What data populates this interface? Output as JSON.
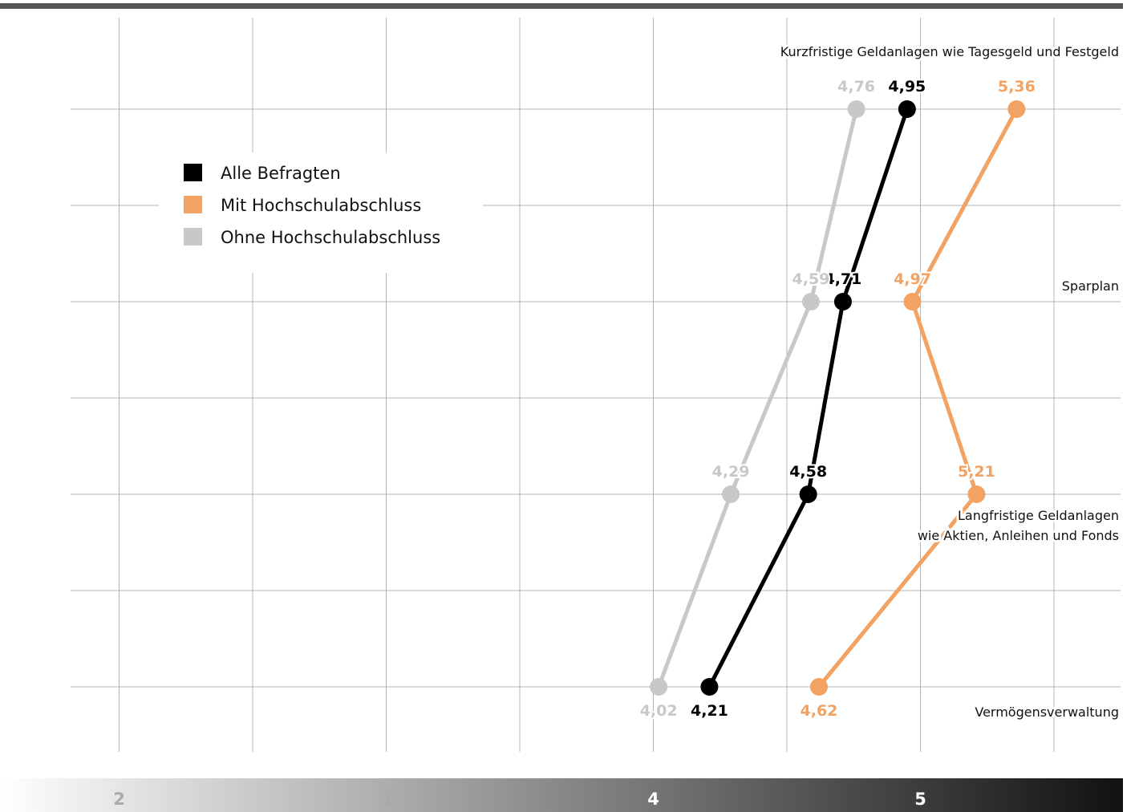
{
  "chart_data": {
    "type": "line",
    "orientation": "horizontal",
    "categories": [
      [
        "Kurzfristige Geldanlagen wie Tagesgeld und Festgeld"
      ],
      [
        "Sparplan"
      ],
      [
        "Langfristige Geldanlagen",
        "wie Aktien, Anleihen und Fonds"
      ],
      [
        "Vermögensverwaltung"
      ]
    ],
    "series": [
      {
        "name": "Alle Befragten",
        "color": "#000000",
        "values": [
          4.95,
          4.71,
          4.58,
          4.21
        ],
        "labels": [
          "4,95",
          "4,71",
          "4,58",
          "4,21"
        ]
      },
      {
        "name": "Mit Hochschulabschluss",
        "color": "#f2a262",
        "values": [
          5.36,
          4.97,
          5.21,
          4.62
        ],
        "labels": [
          "5,36",
          "4,97",
          "5,21",
          "4,62"
        ]
      },
      {
        "name": "Ohne Hochschulabschluss",
        "color": "#c8c8c8",
        "values": [
          4.76,
          4.59,
          4.29,
          4.02
        ],
        "labels": [
          "4,76",
          "4,59",
          "4,29",
          "4,02"
        ]
      }
    ],
    "x_ticks": [
      "2",
      "3",
      "4",
      "5"
    ],
    "x_tick_values": [
      2,
      3,
      4,
      5
    ],
    "xlim": [
      1.6,
      5.5
    ],
    "grid": true,
    "legend_position": "top-left",
    "colors": {
      "top_bar": "#555555",
      "grid": "#b4b4b4",
      "gradient_start": "#ffffff",
      "gradient_end": "#111111"
    }
  }
}
